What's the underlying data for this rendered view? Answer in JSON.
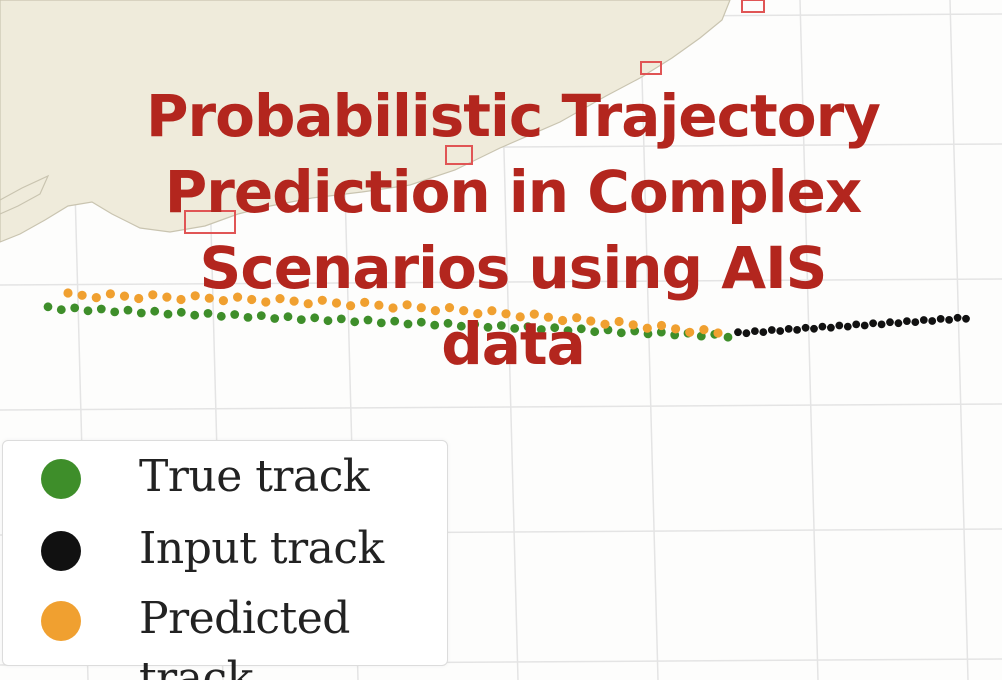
{
  "title": "Probabilistic Trajectory Prediction in Complex Scenarios using AIS data",
  "colors": {
    "title": "#b3261e",
    "true_track": "#3e8e2a",
    "input_track": "#111111",
    "predicted_track": "#f0a030",
    "land": "#efebdb",
    "grid": "#e4e4e4",
    "port_box": "#e05555"
  },
  "legend": {
    "placement": "bottom-left",
    "items": [
      {
        "label": "True track",
        "color": "#3e8e2a"
      },
      {
        "label": "Input track",
        "color": "#111111"
      },
      {
        "label": "Predicted track",
        "color": "#f0a030"
      }
    ]
  },
  "chart_data": {
    "type": "scatter",
    "grid": true,
    "background": "map",
    "xlabel": "",
    "ylabel": "",
    "series": [
      {
        "name": "Input track",
        "color": "#111111",
        "point_count": 28
      },
      {
        "name": "True track",
        "color": "#3e8e2a",
        "point_count": 52
      },
      {
        "name": "Predicted track",
        "color": "#f0a030",
        "point_count": 47
      }
    ]
  }
}
